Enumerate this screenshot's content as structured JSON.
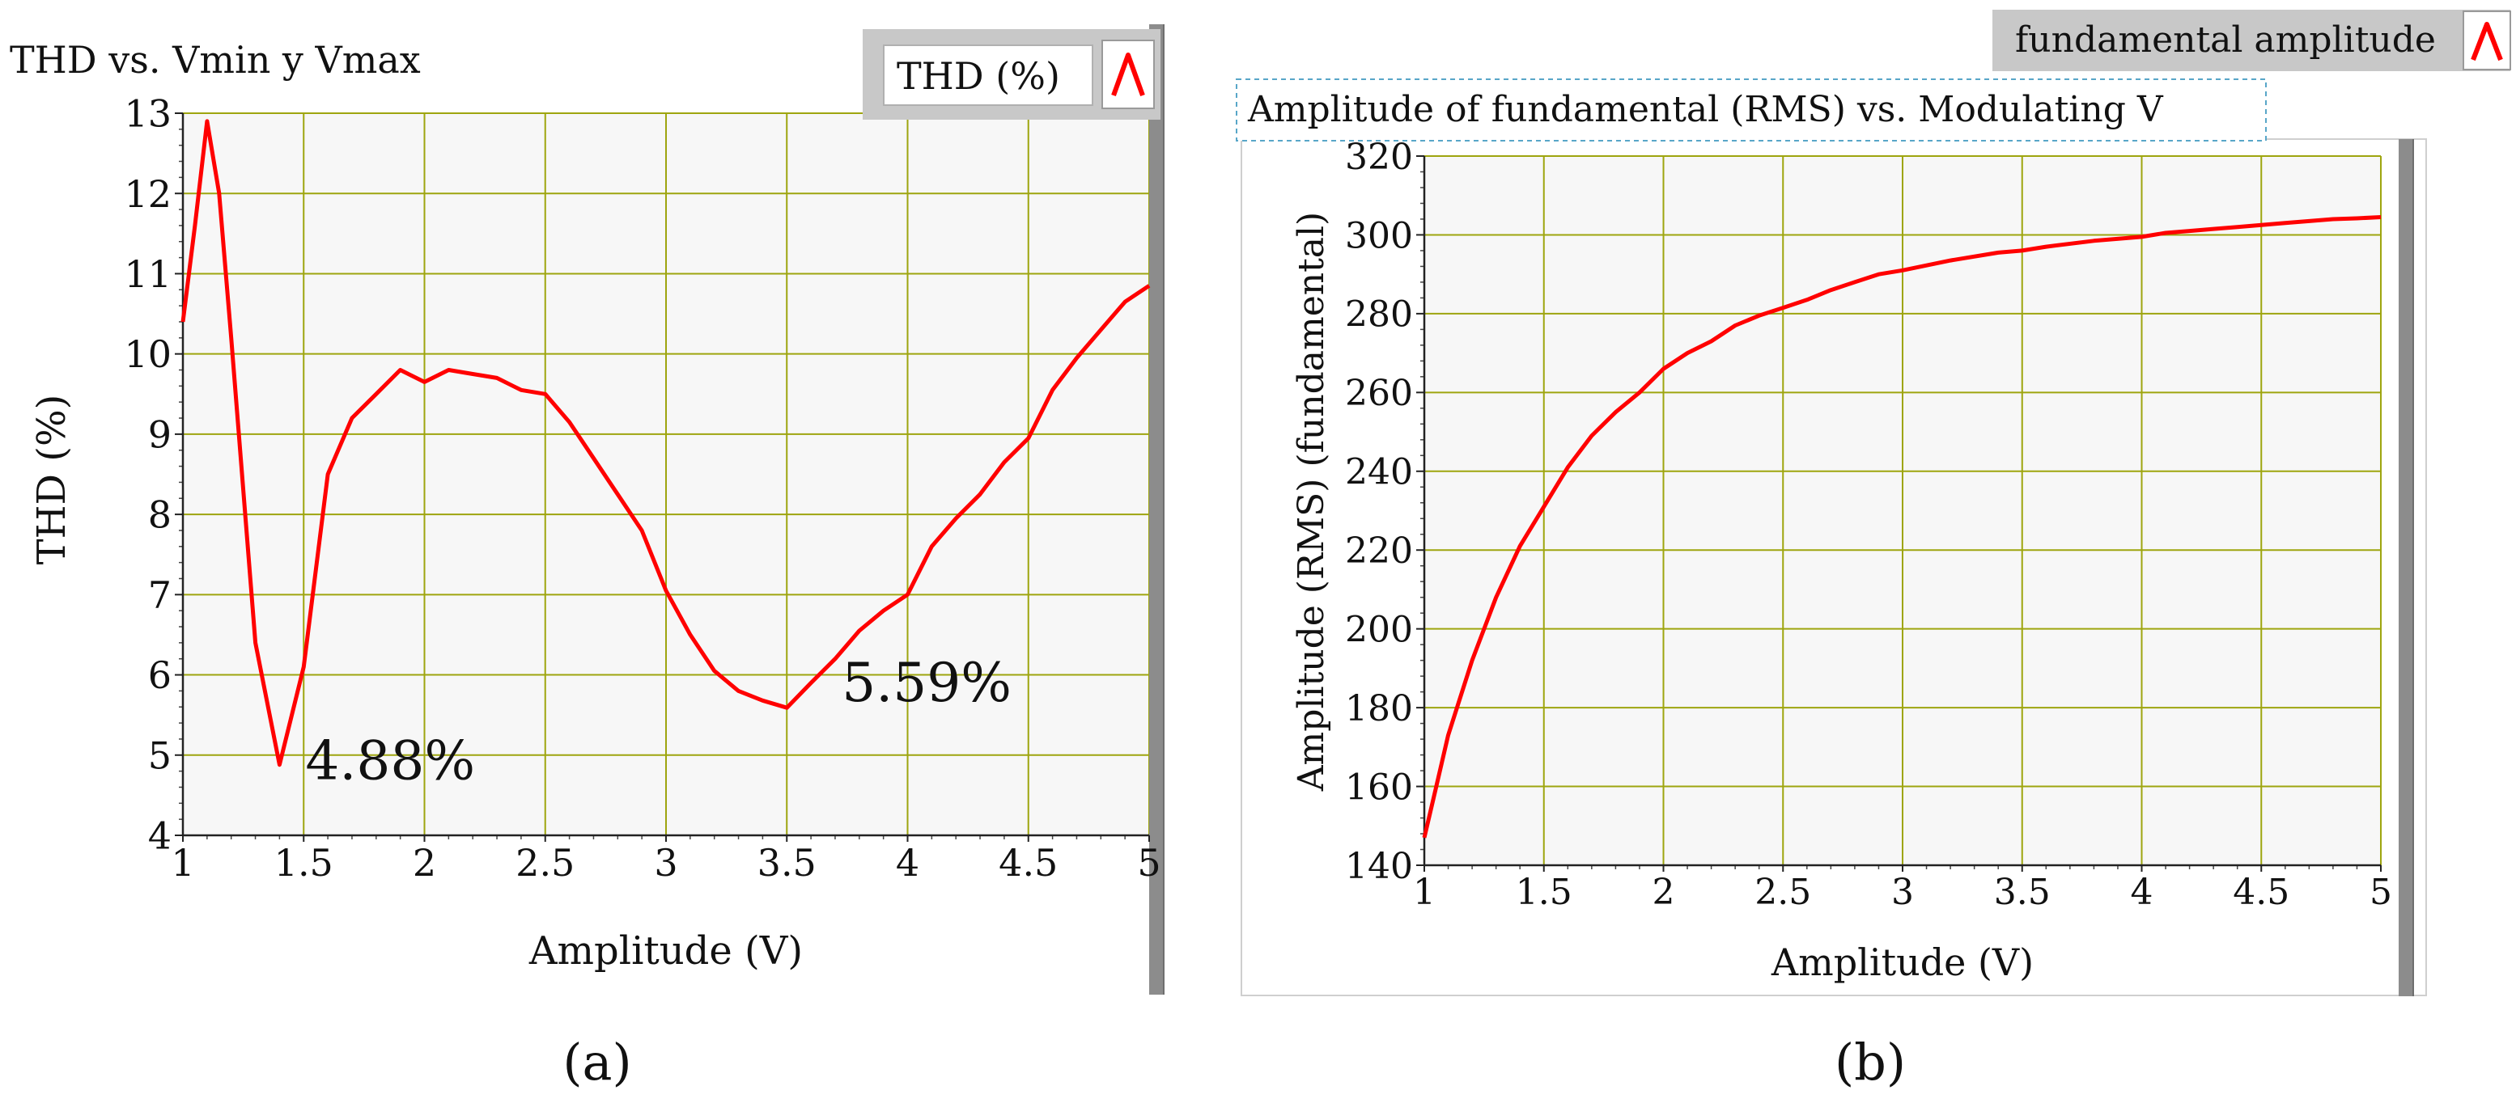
{
  "panel_a": {
    "title": "THD vs. Vmin y Vmax",
    "legend_label": "THD (%)",
    "legend_icon": "line-plot-icon",
    "caption": "(a)",
    "annotations": [
      "4.88%",
      "5.59%"
    ]
  },
  "panel_b": {
    "title": "Amplitude of fundamental (RMS) vs. Modulating V",
    "legend_label": "fundamental amplitude",
    "legend_icon": "line-plot-icon",
    "caption": "(b)"
  },
  "colors": {
    "series": "#ff0000",
    "plot_background": "#f7f7f7",
    "grid": "#9ea50f",
    "frame_shadow": "#8c8c8c",
    "legend_header": "#c8c8c8"
  },
  "chart_data": [
    {
      "type": "line",
      "title": "THD vs. Vmin y Vmax",
      "xlabel": "Amplitude (V)",
      "ylabel": "THD (%)",
      "xlim": [
        1,
        5
      ],
      "ylim": [
        4,
        13
      ],
      "xticks": [
        1,
        1.5,
        2,
        2.5,
        3,
        3.5,
        4,
        4.5,
        5
      ],
      "xtick_labels": [
        "1",
        "1.5",
        "2",
        "2.5",
        "3",
        "3.5",
        "4",
        "4.5",
        "5"
      ],
      "yticks": [
        4,
        5,
        6,
        7,
        8,
        9,
        10,
        11,
        12,
        13
      ],
      "ytick_labels": [
        "4",
        "5",
        "6",
        "7",
        "8",
        "9",
        "10",
        "11",
        "12",
        "13"
      ],
      "grid": true,
      "legend": "top-right",
      "series": [
        {
          "name": "THD (%)",
          "x": [
            1.0,
            1.05,
            1.1,
            1.15,
            1.2,
            1.3,
            1.4,
            1.5,
            1.6,
            1.7,
            1.8,
            1.9,
            2.0,
            2.1,
            2.2,
            2.3,
            2.4,
            2.5,
            2.6,
            2.7,
            2.8,
            2.9,
            3.0,
            3.1,
            3.2,
            3.3,
            3.4,
            3.5,
            3.6,
            3.7,
            3.8,
            3.9,
            4.0,
            4.1,
            4.2,
            4.3,
            4.4,
            4.5,
            4.6,
            4.7,
            4.8,
            4.9,
            5.0
          ],
          "y": [
            10.4,
            11.6,
            12.9,
            12.0,
            10.2,
            6.4,
            4.88,
            6.1,
            8.5,
            9.2,
            9.5,
            9.8,
            9.65,
            9.8,
            9.75,
            9.7,
            9.55,
            9.5,
            9.15,
            8.7,
            8.25,
            7.8,
            7.05,
            6.5,
            6.05,
            5.8,
            5.68,
            5.59,
            5.9,
            6.2,
            6.55,
            6.8,
            7.0,
            7.6,
            7.95,
            8.25,
            8.65,
            8.95,
            9.55,
            9.95,
            10.3,
            10.65,
            10.85
          ]
        }
      ],
      "annotations": [
        {
          "text": "4.88%",
          "x": 1.4,
          "y": 4.88
        },
        {
          "text": "5.59%",
          "x": 3.5,
          "y": 5.59
        }
      ]
    },
    {
      "type": "line",
      "title": "Amplitude of fundamental (RMS) vs. Modulating V",
      "xlabel": "Amplitude (V)",
      "ylabel": "Amplitude (RMS) (fundamental)",
      "xlim": [
        1,
        5
      ],
      "ylim": [
        140,
        320
      ],
      "xticks": [
        1,
        1.5,
        2,
        2.5,
        3,
        3.5,
        4,
        4.5,
        5
      ],
      "xtick_labels": [
        "1",
        "1.5",
        "2",
        "2.5",
        "3",
        "3.5",
        "4",
        "4.5",
        "5"
      ],
      "yticks": [
        140,
        160,
        180,
        200,
        220,
        240,
        260,
        280,
        300,
        320
      ],
      "ytick_labels": [
        "140",
        "160",
        "180",
        "200",
        "220",
        "240",
        "260",
        "280",
        "300",
        "320"
      ],
      "grid": true,
      "legend": "top-right",
      "series": [
        {
          "name": "fundamental amplitude",
          "x": [
            1.0,
            1.05,
            1.1,
            1.2,
            1.3,
            1.4,
            1.5,
            1.6,
            1.7,
            1.8,
            1.9,
            2.0,
            2.1,
            2.2,
            2.3,
            2.4,
            2.5,
            2.6,
            2.7,
            2.8,
            2.9,
            3.0,
            3.2,
            3.4,
            3.5,
            3.6,
            3.8,
            4.0,
            4.1,
            4.2,
            4.3,
            4.4,
            4.5,
            4.6,
            4.7,
            4.8,
            4.9,
            5.0
          ],
          "y": [
            147,
            160,
            173,
            192,
            208,
            221,
            231,
            241,
            249,
            255,
            260,
            266,
            270,
            273,
            277,
            279.5,
            281.5,
            283.5,
            286,
            288,
            290,
            291,
            293.5,
            295.5,
            296,
            297,
            298.5,
            299.5,
            300.5,
            301,
            301.5,
            302,
            302.5,
            303,
            303.5,
            304,
            304.2,
            304.5
          ]
        }
      ]
    }
  ]
}
